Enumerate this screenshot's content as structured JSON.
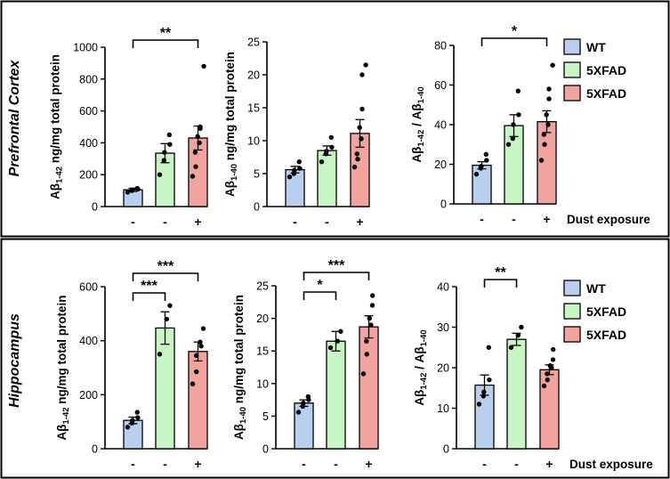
{
  "colors": {
    "wt": "#b9cfee",
    "xfad_green": "#c8f5c4",
    "xfad_red": "#f3a39e",
    "ink": "#000000"
  },
  "legend": [
    "WT",
    "5XFAD",
    "5XFAD"
  ],
  "dust_label": "Dust exposure",
  "dust_ticks": [
    "-",
    "-",
    "+"
  ],
  "ylabel_prefix": "Aβ",
  "ylabel_suffix": " ng/mg total protein",
  "ratio_sep": " / ",
  "sub_42": "1-42",
  "sub_40": "1-40",
  "chart_data": [
    {
      "type": "bar",
      "panel": "Prefrontal Cortex",
      "categories": [
        "WT -",
        "5XFAD -",
        "5XFAD +"
      ],
      "charts": [
        {
          "id": "pfc-ab42",
          "ylabel_kind": "42",
          "ylim": [
            0,
            1000
          ],
          "yticks": [
            0,
            200,
            400,
            600,
            800,
            1000
          ],
          "values": [
            105,
            335,
            430
          ],
          "sem": [
            10,
            60,
            75
          ],
          "points": [
            [
              90,
              100,
              105,
              110,
              115
            ],
            [
              200,
              290,
              340,
              390,
              450
            ],
            [
              190,
              250,
              340,
              400,
              440,
              490,
              500,
              880
            ]
          ],
          "significance": [
            {
              "from": 0,
              "to": 2,
              "label": "**",
              "level": 1
            }
          ]
        },
        {
          "id": "pfc-ab40",
          "ylabel_kind": "40",
          "ylim": [
            0,
            25
          ],
          "yticks": [
            0,
            5,
            10,
            15,
            20,
            25
          ],
          "values": [
            5.6,
            8.5,
            11.1
          ],
          "sem": [
            0.5,
            0.7,
            2.1
          ],
          "points": [
            [
              4.5,
              5.0,
              5.5,
              5.8,
              6.8
            ],
            [
              6.8,
              8.0,
              8.4,
              9.0,
              10.5
            ],
            [
              6.0,
              7.2,
              8.0,
              10.3,
              12.0,
              14.8,
              20.0,
              21.5
            ]
          ],
          "significance": []
        },
        {
          "id": "pfc-ratio",
          "ylabel_kind": "ratio",
          "ylim": [
            0,
            80
          ],
          "yticks": [
            0,
            20,
            40,
            60,
            80
          ],
          "values": [
            19.5,
            39.5,
            41.5
          ],
          "sem": [
            1.8,
            5.5,
            5.5
          ],
          "points": [
            [
              15,
              18,
              19,
              22,
              25
            ],
            [
              30,
              33,
              40,
              45,
              57
            ],
            [
              22,
              30,
              35,
              40,
              45,
              53,
              58,
              70
            ]
          ],
          "significance": [
            {
              "from": 0,
              "to": 2,
              "label": "*",
              "level": 1
            }
          ]
        }
      ]
    },
    {
      "type": "bar",
      "panel": "Hippocampus",
      "categories": [
        "WT -",
        "5XFAD -",
        "5XFAD +"
      ],
      "charts": [
        {
          "id": "hip-ab42",
          "ylabel_kind": "42",
          "ylim": [
            0,
            600
          ],
          "yticks": [
            0,
            200,
            400,
            600
          ],
          "values": [
            105,
            447,
            360
          ],
          "sem": [
            12,
            60,
            35
          ],
          "points": [
            [
              80,
              95,
              105,
              115,
              135
            ],
            [
              350,
              480,
              530
            ],
            [
              240,
              285,
              345,
              380,
              395,
              445
            ]
          ],
          "significance": [
            {
              "from": 0,
              "to": 1,
              "label": "***",
              "level": 1
            },
            {
              "from": 0,
              "to": 2,
              "label": "***",
              "level": 2
            }
          ]
        },
        {
          "id": "hip-ab40",
          "ylabel_kind": "40",
          "ylim": [
            0,
            25
          ],
          "yticks": [
            0,
            5,
            10,
            15,
            20,
            25
          ],
          "values": [
            7.0,
            16.5,
            18.7
          ],
          "sem": [
            0.5,
            1.5,
            1.7
          ],
          "points": [
            [
              5.6,
              6.5,
              7.0,
              7.5,
              8.0
            ],
            [
              15.5,
              16.5,
              18.0
            ],
            [
              11.5,
              14.5,
              16.5,
              19.0,
              20.0,
              22.0,
              23.5
            ]
          ],
          "significance": [
            {
              "from": 0,
              "to": 1,
              "label": "*",
              "level": 1
            },
            {
              "from": 0,
              "to": 2,
              "label": "***",
              "level": 2
            }
          ]
        },
        {
          "id": "hip-ratio",
          "ylabel_kind": "ratio",
          "ylim": [
            0,
            40
          ],
          "yticks": [
            0,
            10,
            20,
            30,
            40
          ],
          "values": [
            15.7,
            27.0,
            19.5
          ],
          "sem": [
            2.5,
            1.5,
            1.2
          ],
          "points": [
            [
              11,
              13,
              14,
              17,
              25
            ],
            [
              25,
              28,
              30
            ],
            [
              15.5,
              17,
              18.5,
              20,
              20.5,
              22,
              24.5
            ]
          ],
          "significance": [
            {
              "from": 0,
              "to": 1,
              "label": "**",
              "level": 1
            }
          ]
        }
      ]
    }
  ]
}
